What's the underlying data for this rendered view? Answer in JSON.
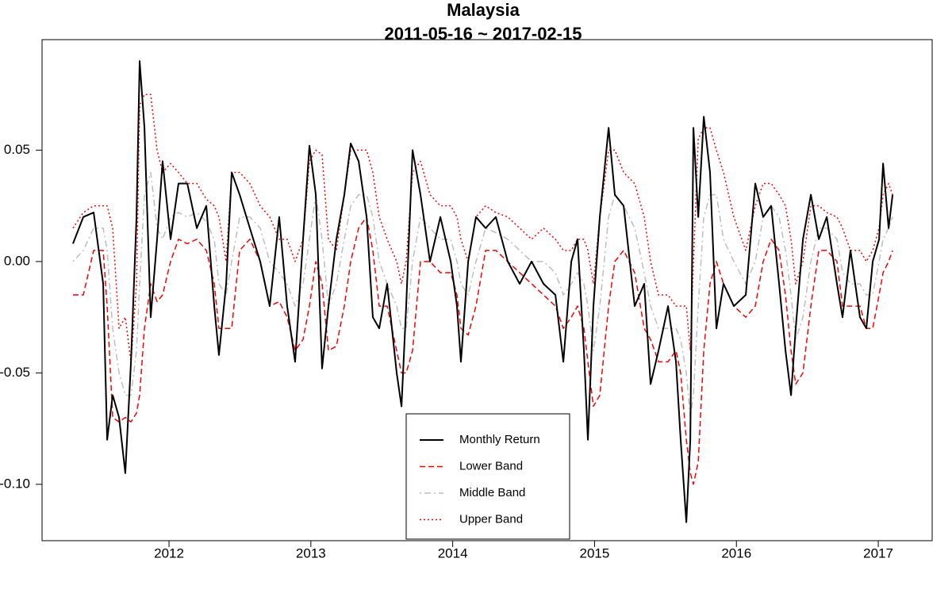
{
  "chart_data": {
    "type": "line",
    "title": "Malaysia",
    "subtitle": "2011-05-16 ~ 2017-02-15",
    "x": [
      2011.323,
      2011.396,
      2011.469,
      2011.536,
      2011.564,
      2011.603,
      2011.648,
      2011.692,
      2011.732,
      2011.771,
      2011.793,
      2011.827,
      2011.871,
      2011.916,
      2011.955,
      2012.011,
      2012.067,
      2012.129,
      2012.196,
      2012.263,
      2012.319,
      2012.352,
      2012.403,
      2012.442,
      2012.498,
      2012.57,
      2012.643,
      2012.71,
      2012.777,
      2012.833,
      2012.889,
      2012.945,
      2012.99,
      2013.035,
      2013.079,
      2013.124,
      2013.18,
      2013.236,
      2013.281,
      2013.337,
      2013.393,
      2013.437,
      2013.482,
      2013.538,
      2013.605,
      2013.639,
      2013.672,
      2013.717,
      2013.773,
      2013.84,
      2013.913,
      2013.986,
      2014.03,
      2014.058,
      2014.109,
      2014.164,
      2014.232,
      2014.304,
      2014.388,
      2014.472,
      2014.556,
      2014.64,
      2014.724,
      2014.78,
      2014.836,
      2014.88,
      2014.925,
      2014.953,
      2014.992,
      2015.037,
      2015.099,
      2015.143,
      2015.205,
      2015.283,
      2015.35,
      2015.395,
      2015.451,
      2015.518,
      2015.574,
      2015.607,
      2015.647,
      2015.675,
      2015.697,
      2015.731,
      2015.77,
      2015.814,
      2015.859,
      2015.909,
      2015.982,
      2016.066,
      2016.133,
      2016.189,
      2016.245,
      2016.301,
      2016.346,
      2016.385,
      2016.418,
      2016.469,
      2016.525,
      2016.581,
      2016.637,
      2016.709,
      2016.748,
      2016.804,
      2016.871,
      2016.916,
      2016.961,
      2017.006,
      2017.034,
      2017.073,
      2017.101
    ],
    "series": [
      {
        "name": "Monthly Return",
        "color": "#000000",
        "dash": "solid",
        "values": [
          0.008,
          0.02,
          0.022,
          -0.01,
          -0.08,
          -0.06,
          -0.07,
          -0.095,
          -0.045,
          0.02,
          0.09,
          0.06,
          -0.025,
          0.01,
          0.045,
          0.01,
          0.035,
          0.035,
          0.015,
          0.025,
          -0.02,
          -0.042,
          -0.01,
          0.04,
          0.03,
          0.015,
          0.0,
          -0.02,
          0.02,
          -0.02,
          -0.045,
          0.01,
          0.052,
          0.03,
          -0.048,
          -0.02,
          0.01,
          0.03,
          0.053,
          0.045,
          0.02,
          -0.025,
          -0.03,
          -0.01,
          -0.05,
          -0.065,
          -0.02,
          0.05,
          0.03,
          0.0,
          0.02,
          0.0,
          -0.02,
          -0.045,
          0.0,
          0.02,
          0.015,
          0.02,
          0.0,
          -0.01,
          0.0,
          -0.01,
          -0.015,
          -0.045,
          0.0,
          0.01,
          -0.04,
          -0.08,
          -0.02,
          0.02,
          0.06,
          0.03,
          0.025,
          -0.02,
          -0.01,
          -0.055,
          -0.04,
          -0.02,
          -0.045,
          -0.08,
          -0.117,
          -0.08,
          0.06,
          0.02,
          0.065,
          0.04,
          -0.03,
          -0.01,
          -0.02,
          -0.015,
          0.035,
          0.02,
          0.025,
          -0.01,
          -0.04,
          -0.06,
          -0.03,
          0.01,
          0.03,
          0.01,
          0.02,
          -0.01,
          -0.025,
          0.005,
          -0.025,
          -0.03,
          0.0,
          0.01,
          0.044,
          0.015,
          0.03
        ]
      },
      {
        "name": "Lower Band",
        "color": "#ff0000",
        "dash": "dashed",
        "values": [
          -0.015,
          -0.015,
          0.005,
          0.005,
          -0.02,
          -0.07,
          -0.072,
          -0.07,
          -0.072,
          -0.068,
          -0.06,
          -0.03,
          -0.01,
          -0.018,
          -0.015,
          0.0,
          0.01,
          0.008,
          0.01,
          0.005,
          -0.01,
          -0.03,
          -0.03,
          -0.03,
          0.005,
          0.01,
          0.0,
          -0.02,
          -0.018,
          -0.025,
          -0.04,
          -0.035,
          -0.02,
          0.0,
          -0.01,
          -0.04,
          -0.038,
          -0.02,
          0.0,
          0.015,
          0.02,
          0.005,
          -0.02,
          -0.02,
          -0.04,
          -0.05,
          -0.05,
          -0.04,
          0.0,
          0.0,
          -0.005,
          -0.005,
          -0.015,
          -0.03,
          -0.033,
          -0.02,
          0.005,
          0.005,
          0.0,
          -0.005,
          -0.01,
          -0.015,
          -0.02,
          -0.03,
          -0.025,
          -0.02,
          -0.03,
          -0.045,
          -0.065,
          -0.06,
          -0.02,
          0.0,
          0.005,
          -0.005,
          -0.03,
          -0.035,
          -0.045,
          -0.045,
          -0.04,
          -0.05,
          -0.08,
          -0.095,
          -0.1,
          -0.09,
          -0.04,
          -0.01,
          0.0,
          -0.01,
          -0.02,
          -0.025,
          -0.02,
          0.0,
          0.01,
          0.005,
          -0.015,
          -0.04,
          -0.055,
          -0.05,
          -0.02,
          0.005,
          0.005,
          0.0,
          -0.02,
          -0.02,
          -0.02,
          -0.03,
          -0.03,
          -0.015,
          -0.005,
          0.0,
          0.005
        ]
      },
      {
        "name": "Middle Band",
        "color": "#bebebe",
        "dash": "dotdash",
        "values": [
          0.0,
          0.005,
          0.015,
          0.015,
          0.005,
          -0.03,
          -0.05,
          -0.06,
          -0.06,
          -0.04,
          -0.01,
          0.03,
          0.04,
          0.015,
          0.01,
          0.02,
          0.022,
          0.02,
          0.022,
          0.018,
          0.01,
          -0.01,
          -0.015,
          0.0,
          0.02,
          0.02,
          0.015,
          0.0,
          -0.005,
          -0.01,
          -0.02,
          -0.01,
          0.01,
          0.03,
          0.01,
          -0.02,
          -0.01,
          0.01,
          0.025,
          0.03,
          0.03,
          0.02,
          0.0,
          -0.01,
          -0.02,
          -0.03,
          -0.03,
          0.0,
          0.02,
          0.015,
          0.01,
          0.01,
          0.0,
          -0.01,
          -0.015,
          0.0,
          0.015,
          0.013,
          0.01,
          0.005,
          0.0,
          0.0,
          -0.005,
          -0.015,
          -0.01,
          -0.005,
          -0.01,
          -0.02,
          -0.04,
          -0.02,
          0.02,
          0.03,
          0.025,
          0.015,
          -0.005,
          -0.02,
          -0.03,
          -0.03,
          -0.03,
          -0.035,
          -0.05,
          -0.07,
          -0.06,
          -0.02,
          0.02,
          0.03,
          0.03,
          0.01,
          0.0,
          -0.01,
          0.0,
          0.02,
          0.025,
          0.02,
          0.005,
          -0.015,
          -0.035,
          -0.025,
          0.0,
          0.015,
          0.015,
          0.01,
          -0.005,
          -0.01,
          -0.01,
          -0.015,
          -0.015,
          0.0,
          0.01,
          0.015,
          0.02
        ]
      },
      {
        "name": "Upper Band",
        "color": "#ff0000",
        "dash": "dotted",
        "values": [
          0.015,
          0.022,
          0.025,
          0.025,
          0.025,
          0.015,
          -0.03,
          -0.025,
          -0.045,
          -0.01,
          0.07,
          0.075,
          0.075,
          0.05,
          0.04,
          0.044,
          0.04,
          0.035,
          0.035,
          0.028,
          0.025,
          0.02,
          0.0,
          0.04,
          0.04,
          0.035,
          0.025,
          0.02,
          0.01,
          0.01,
          0.0,
          0.01,
          0.045,
          0.05,
          0.048,
          0.01,
          0.005,
          0.03,
          0.05,
          0.05,
          0.05,
          0.04,
          0.02,
          0.01,
          0.0,
          -0.01,
          0.0,
          0.04,
          0.045,
          0.03,
          0.025,
          0.025,
          0.02,
          0.01,
          0.0,
          0.02,
          0.025,
          0.022,
          0.02,
          0.015,
          0.01,
          0.015,
          0.01,
          0.005,
          0.005,
          0.01,
          0.01,
          0.005,
          -0.01,
          0.02,
          0.05,
          0.05,
          0.04,
          0.035,
          0.02,
          0.0,
          -0.015,
          -0.015,
          -0.02,
          -0.02,
          -0.02,
          -0.04,
          0.0,
          0.055,
          0.06,
          0.06,
          0.05,
          0.04,
          0.02,
          0.005,
          0.025,
          0.035,
          0.035,
          0.03,
          0.025,
          0.01,
          -0.01,
          0.0,
          0.025,
          0.025,
          0.022,
          0.02,
          0.015,
          0.005,
          0.005,
          0.0,
          0.005,
          0.015,
          0.03,
          0.035,
          0.03
        ]
      }
    ],
    "xlim": [
      2011.105,
      2017.38
    ],
    "xticks": [
      2012,
      2013,
      2014,
      2015,
      2016,
      2017
    ],
    "ylim": [
      -0.1253,
      0.0996
    ],
    "yticks": [
      {
        "value": -0.1,
        "label": "-0.10"
      },
      {
        "value": -0.05,
        "label": "-0.05"
      },
      {
        "value": 0,
        "label": "0.00"
      },
      {
        "value": 0.05,
        "label": "0.05"
      }
    ],
    "grid": false,
    "legend": "bottom"
  }
}
